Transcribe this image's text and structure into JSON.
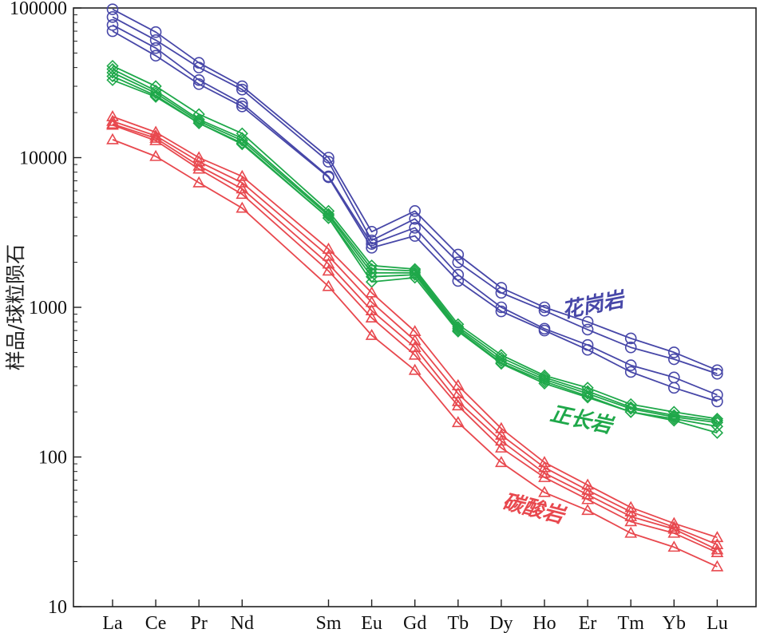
{
  "chart_data": {
    "type": "line",
    "ylabel": "样品/球粒陨石",
    "yscale": "log",
    "ylim": [
      10,
      100000
    ],
    "yticks": [
      "10",
      "100",
      "1000",
      "10000",
      "100000"
    ],
    "categories": [
      "La",
      "Ce",
      "Pr",
      "Nd",
      "Sm",
      "Eu",
      "Gd",
      "Tb",
      "Dy",
      "Ho",
      "Er",
      "Tm",
      "Yb",
      "Lu"
    ],
    "category_positions": [
      1,
      2,
      3,
      4,
      6,
      7,
      8,
      9,
      10,
      11,
      12,
      13,
      14,
      15
    ],
    "groups": [
      {
        "label": "花岗岩",
        "color": "#4747a8",
        "marker": "circle",
        "series": [
          {
            "values": [
              98000,
              69000,
              43000,
              30000,
              10000,
              3200,
              4400,
              2250,
              1350,
              1000,
              800,
              620,
              500,
              380
            ]
          },
          {
            "values": [
              87000,
              61000,
              40000,
              28500,
              9400,
              2800,
              3900,
              2000,
              1250,
              950,
              710,
              540,
              450,
              360
            ]
          },
          {
            "values": [
              77000,
              54000,
              33000,
              23000,
              7500,
              2650,
              3400,
              1650,
              1000,
              720,
              560,
              410,
              340,
              260
            ]
          },
          {
            "values": [
              70000,
              48000,
              31000,
              22000,
              7400,
              2500,
              3000,
              1500,
              940,
              700,
              520,
              370,
              290,
              235
            ]
          }
        ]
      },
      {
        "label": "正长岩",
        "color": "#1fa84a",
        "marker": "diamond",
        "series": [
          {
            "values": [
              41000,
              30000,
              19500,
              14500,
              4400,
              1900,
              1800,
              770,
              480,
              350,
              290,
              225,
              200,
              180
            ]
          },
          {
            "values": [
              39000,
              28000,
              18000,
              13500,
              4200,
              1800,
              1750,
              740,
              460,
              340,
              275,
              215,
              190,
              175
            ]
          },
          {
            "values": [
              37000,
              27000,
              17500,
              13000,
              4100,
              1700,
              1700,
              720,
              440,
              330,
              265,
              210,
              185,
              170
            ]
          },
          {
            "values": [
              35000,
              26000,
              17000,
              12500,
              3950,
              1600,
              1650,
              700,
              425,
              320,
              255,
              200,
              180,
              160
            ]
          },
          {
            "values": [
              33000,
              25500,
              17000,
              12300,
              3950,
              1480,
              1580,
              690,
              420,
              310,
              250,
              200,
              175,
              145
            ]
          }
        ]
      },
      {
        "label": "碳酸岩",
        "color": "#e8484e",
        "marker": "triangle",
        "series": [
          {
            "values": [
              18800,
              14800,
              10000,
              7500,
              2450,
              1250,
              690,
              300,
              155,
              92,
              65,
              46,
              36,
              29
            ]
          },
          {
            "values": [
              17500,
              14000,
              9400,
              6800,
              2200,
              1080,
              600,
              265,
              140,
              85,
              60,
              43,
              34,
              26
            ]
          },
          {
            "values": [
              16800,
              13500,
              8800,
              6200,
              1950,
              950,
              540,
              235,
              128,
              78,
              56,
              40,
              33,
              24
            ]
          },
          {
            "values": [
              16500,
              13000,
              8400,
              5700,
              1750,
              850,
              480,
              220,
              115,
              73,
              52,
              37,
              31,
              23
            ]
          },
          {
            "values": [
              13200,
              10200,
              6800,
              4600,
              1380,
              650,
              380,
              170,
              92,
              58,
              44,
              31,
              25,
              18.5
            ]
          }
        ]
      }
    ]
  }
}
